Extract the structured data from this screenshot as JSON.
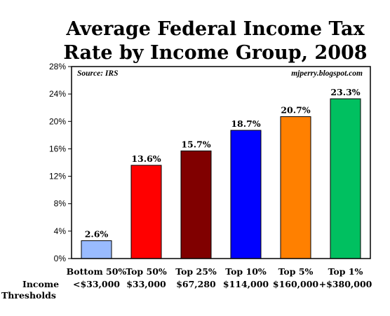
{
  "chart_data": {
    "type": "bar",
    "title_lines": [
      "Average Federal Income Tax",
      "Rate by Income Group, 2008"
    ],
    "source_note": "Source: IRS",
    "credit_note": "mjperry.blogspot.com",
    "categories": [
      "Bottom 50%",
      "Top 50%",
      "Top 25%",
      "Top 10%",
      "Top 5%",
      "Top 1%"
    ],
    "thresholds": [
      "<$33,000",
      "$33,000",
      "$67,280",
      "$114,000",
      "$160,000",
      "+$380,000"
    ],
    "threshold_label_lines": [
      "Income",
      "Thresholds"
    ],
    "values": [
      2.6,
      13.6,
      15.7,
      18.7,
      20.7,
      23.3
    ],
    "value_labels": [
      "2.6%",
      "13.6%",
      "15.7%",
      "18.7%",
      "20.7%",
      "23.3%"
    ],
    "bar_colors": [
      "#99bbff",
      "#ff0000",
      "#800000",
      "#0000ff",
      "#ff8000",
      "#00c060"
    ],
    "ylim": [
      0,
      28
    ],
    "yticks": [
      0,
      4,
      8,
      12,
      16,
      20,
      24,
      28
    ],
    "ytick_labels": [
      "0%",
      "4%",
      "8%",
      "12%",
      "16%",
      "20%",
      "24%",
      "28%"
    ],
    "grid": false,
    "legend": "none"
  }
}
